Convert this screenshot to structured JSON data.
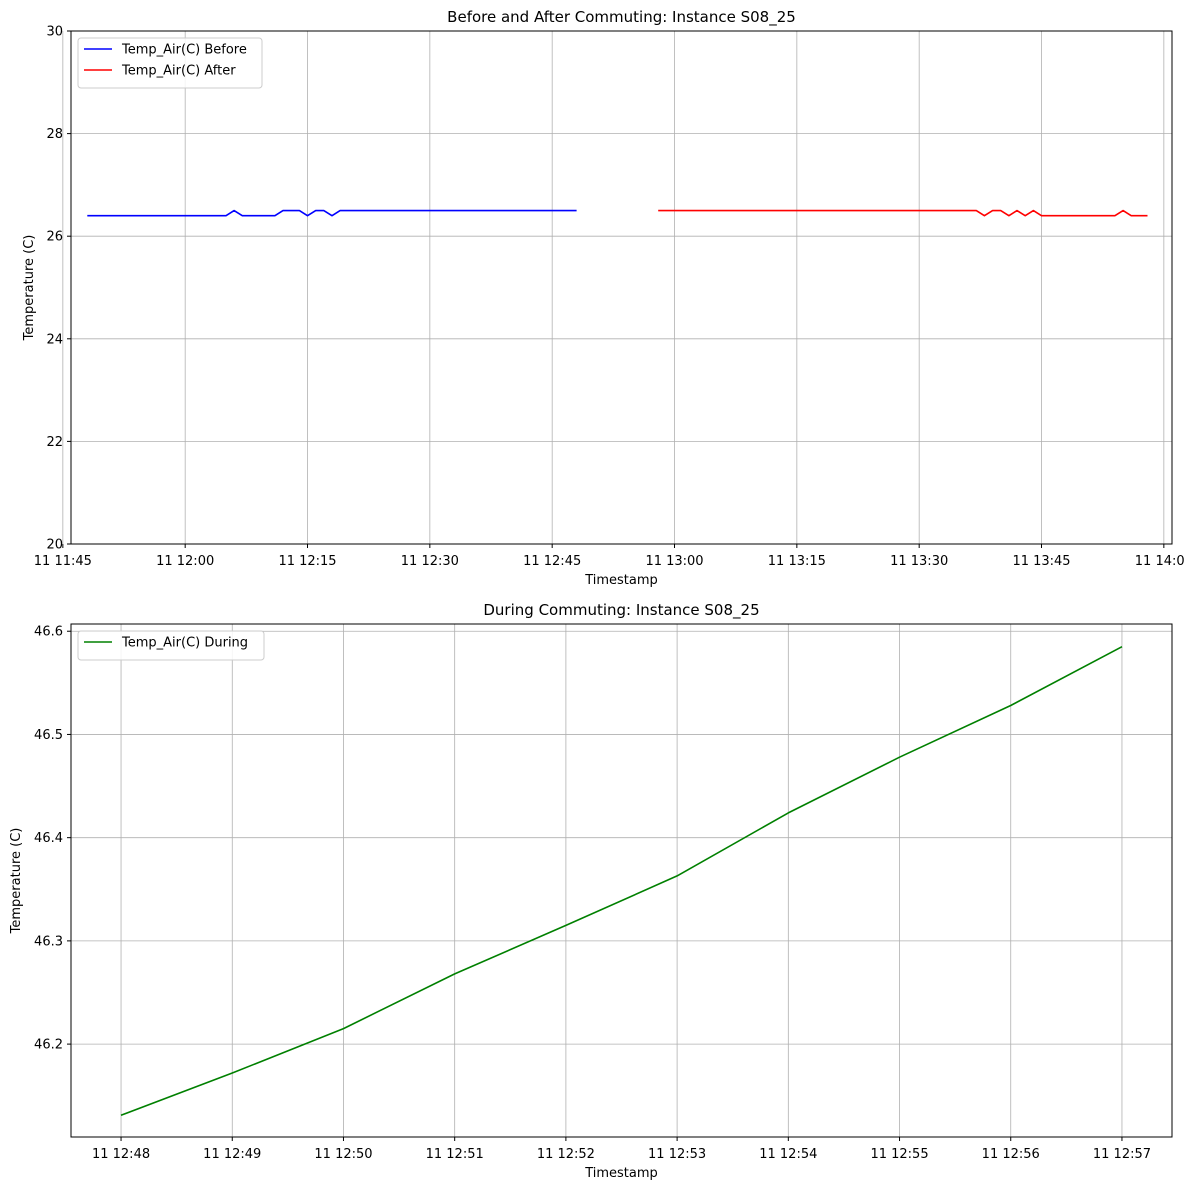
{
  "chart_data": [
    {
      "type": "line",
      "title": "Before and After Commuting: Instance S08_25",
      "xlabel": "Timestamp",
      "ylabel": "Temperature (C)",
      "xlim": [
        "11 11:46",
        "11 14:01"
      ],
      "ylim": [
        20,
        30
      ],
      "x_ticks": [
        "11 11:45",
        "11 12:00",
        "11 12:15",
        "11 12:30",
        "11 12:45",
        "11 13:00",
        "11 13:15",
        "11 13:30",
        "11 13:45",
        "11 14:00"
      ],
      "y_ticks": [
        20,
        22,
        24,
        26,
        28,
        30
      ],
      "grid": true,
      "legend_position": "upper-left",
      "series": [
        {
          "name": "Temp_Air(C) Before",
          "color": "#0000ff",
          "x": [
            "11 11:48",
            "11 12:05",
            "11 12:06",
            "11 12:07",
            "11 12:08",
            "11 12:11",
            "11 12:12",
            "11 12:14",
            "11 12:15",
            "11 12:16",
            "11 12:17",
            "11 12:18",
            "11 12:19",
            "11 12:48"
          ],
          "y": [
            26.4,
            26.4,
            26.5,
            26.4,
            26.4,
            26.4,
            26.5,
            26.5,
            26.4,
            26.5,
            26.5,
            26.4,
            26.5,
            26.5
          ]
        },
        {
          "name": "Temp_Air(C) After",
          "color": "#ff0000",
          "x": [
            "11 12:58",
            "11 13:37",
            "11 13:38",
            "11 13:39",
            "11 13:40",
            "11 13:41",
            "11 13:42",
            "11 13:43",
            "11 13:44",
            "11 13:45",
            "11 13:54",
            "11 13:55",
            "11 13:56",
            "11 13:58"
          ],
          "y": [
            26.5,
            26.5,
            26.4,
            26.5,
            26.5,
            26.4,
            26.5,
            26.4,
            26.5,
            26.4,
            26.4,
            26.5,
            26.4,
            26.4
          ]
        }
      ]
    },
    {
      "type": "line",
      "title": "During Commuting: Instance S08_25",
      "xlabel": "Timestamp",
      "ylabel": "Temperature (C)",
      "xlim": [
        "11 12:47:33",
        "11 12:57:27"
      ],
      "ylim": [
        46.11,
        46.607
      ],
      "x_ticks": [
        "11 12:48",
        "11 12:49",
        "11 12:50",
        "11 12:51",
        "11 12:52",
        "11 12:53",
        "11 12:54",
        "11 12:55",
        "11 12:56",
        "11 12:57"
      ],
      "y_ticks": [
        46.2,
        46.3,
        46.4,
        46.5,
        46.6
      ],
      "grid": true,
      "legend_position": "upper-left",
      "series": [
        {
          "name": "Temp_Air(C) During",
          "color": "#008000",
          "x": [
            "11 12:48",
            "11 12:49",
            "11 12:50",
            "11 12:51",
            "11 12:52",
            "11 12:53",
            "11 12:54",
            "11 12:55",
            "11 12:56",
            "11 12:57"
          ],
          "y": [
            46.131,
            46.172,
            46.215,
            46.268,
            46.315,
            46.363,
            46.424,
            46.478,
            46.528,
            46.585
          ]
        }
      ]
    }
  ]
}
